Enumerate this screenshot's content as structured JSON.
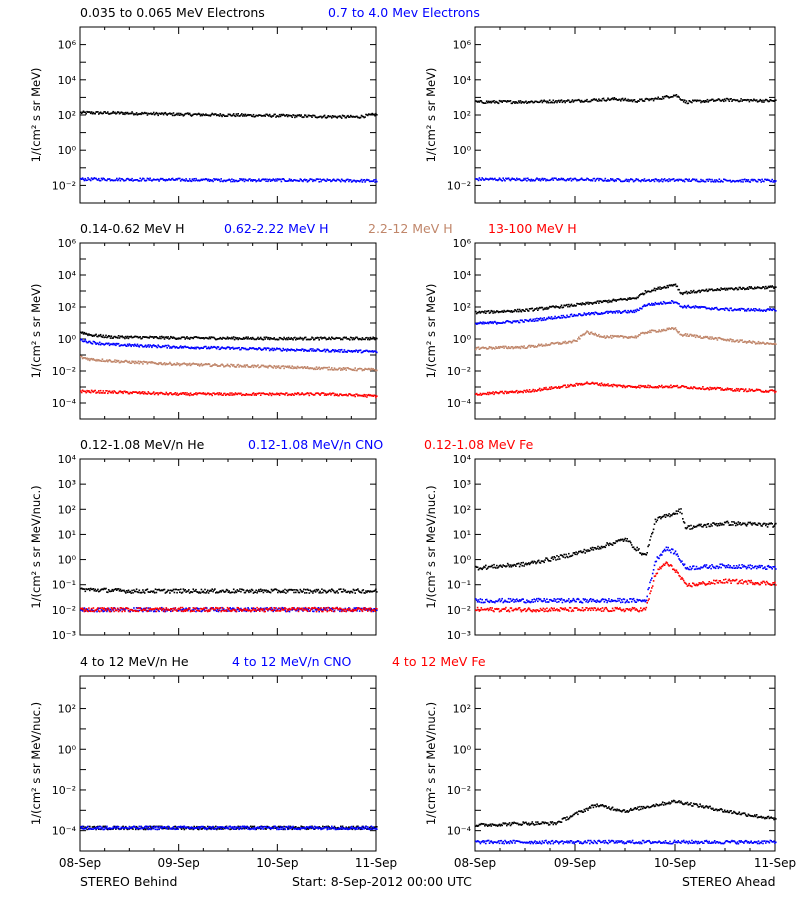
{
  "title_row": {
    "1": [
      {
        "text": "0.035 to 0.065 MeV Electrons",
        "color": "#000000"
      },
      {
        "text": "0.7 to 4.0 Mev Electrons",
        "color": "#0000FF"
      }
    ],
    "2": [
      {
        "text": "0.14-0.62 MeV H",
        "color": "#000000"
      },
      {
        "text": "0.62-2.22 MeV H",
        "color": "#0000FF"
      },
      {
        "text": "2.2-12 MeV H",
        "color": "#C0866A"
      },
      {
        "text": "13-100 MeV H",
        "color": "#FF0000"
      }
    ],
    "3": [
      {
        "text": "0.12-1.08 MeV/n He",
        "color": "#000000"
      },
      {
        "text": "0.12-1.08 MeV/n CNO",
        "color": "#0000FF"
      },
      {
        "text": "0.12-1.08 MeV Fe",
        "color": "#FF0000"
      }
    ],
    "4": [
      {
        "text": "4 to 12 MeV/n He",
        "color": "#000000"
      },
      {
        "text": "4 to 12 MeV/n CNO",
        "color": "#0000FF"
      },
      {
        "text": "4 to 12 MeV Fe",
        "color": "#FF0000"
      }
    ]
  },
  "footer": {
    "left": "STEREO Behind",
    "center": "Start:  8-Sep-2012 00:00 UTC",
    "right": "STEREO Ahead"
  },
  "chart_data": [
    {
      "id": "behind-electrons",
      "type": "scatter",
      "log_y": true,
      "ylim_exp": [
        -3,
        7
      ],
      "ylabel": "1/(cm² s sr MeV)",
      "yticks_exp": [
        -2,
        0,
        2,
        4,
        6
      ],
      "x_ticks": [
        "08-Sep",
        "09-Sep",
        "10-Sep",
        "11-Sep"
      ],
      "xlim_days": [
        0,
        3
      ],
      "series": [
        {
          "color": "#000000",
          "x": [
            0,
            0.5,
            1,
            1.5,
            2,
            2.5,
            2.8,
            3
          ],
          "y": [
            150,
            140,
            120,
            110,
            100,
            90,
            85,
            120
          ]
        },
        {
          "color": "#0000FF",
          "x": [
            0,
            0.5,
            1,
            1.5,
            2,
            2.5,
            3
          ],
          "y": [
            0.025,
            0.024,
            0.023,
            0.022,
            0.022,
            0.021,
            0.02
          ]
        }
      ]
    },
    {
      "id": "ahead-electrons",
      "type": "scatter",
      "log_y": true,
      "ylim_exp": [
        -3,
        7
      ],
      "ylabel": "1/(cm² s sr MeV)",
      "yticks_exp": [
        -2,
        0,
        2,
        4,
        6
      ],
      "x_ticks": [
        "08-Sep",
        "09-Sep",
        "10-Sep",
        "11-Sep"
      ],
      "xlim_days": [
        0,
        3
      ],
      "series": [
        {
          "color": "#000000",
          "x": [
            0,
            0.5,
            1,
            1.4,
            1.6,
            1.8,
            2.0,
            2.1,
            2.5,
            3
          ],
          "y": [
            600,
            620,
            700,
            900,
            700,
            900,
            1500,
            600,
            800,
            700
          ]
        },
        {
          "color": "#0000FF",
          "x": [
            0,
            0.5,
            1,
            1.5,
            2,
            2.5,
            3
          ],
          "y": [
            0.025,
            0.024,
            0.024,
            0.022,
            0.022,
            0.021,
            0.02
          ]
        }
      ]
    },
    {
      "id": "behind-protons",
      "type": "scatter",
      "log_y": true,
      "ylim_exp": [
        -5,
        6
      ],
      "ylabel": "1/(cm² s sr MeV)",
      "yticks_exp": [
        -4,
        -2,
        0,
        2,
        4,
        6
      ],
      "x_ticks": [
        "08-Sep",
        "09-Sep",
        "10-Sep",
        "11-Sep"
      ],
      "xlim_days": [
        0,
        3
      ],
      "series": [
        {
          "color": "#000000",
          "x": [
            0,
            0.1,
            0.3,
            1,
            2,
            3
          ],
          "y": [
            3,
            2,
            1.5,
            1.3,
            1.2,
            1.2
          ]
        },
        {
          "color": "#0000FF",
          "x": [
            0,
            0.1,
            0.3,
            1,
            2,
            3
          ],
          "y": [
            1,
            0.7,
            0.5,
            0.35,
            0.25,
            0.18
          ]
        },
        {
          "color": "#C0866A",
          "x": [
            0,
            0.1,
            0.5,
            1,
            2,
            3
          ],
          "y": [
            0.08,
            0.06,
            0.04,
            0.03,
            0.02,
            0.013
          ]
        },
        {
          "color": "#FF0000",
          "x": [
            0,
            0.5,
            1,
            1.5,
            2,
            2.5,
            3
          ],
          "y": [
            0.0006,
            0.0005,
            0.0004,
            0.0004,
            0.0004,
            0.0004,
            0.0003
          ]
        }
      ]
    },
    {
      "id": "ahead-protons",
      "type": "scatter",
      "log_y": true,
      "ylim_exp": [
        -5,
        6
      ],
      "ylabel": "1/(cm² s sr MeV)",
      "yticks_exp": [
        -4,
        -2,
        0,
        2,
        4,
        6
      ],
      "x_ticks": [
        "08-Sep",
        "09-Sep",
        "10-Sep",
        "11-Sep"
      ],
      "xlim_days": [
        0,
        3
      ],
      "series": [
        {
          "color": "#000000",
          "x": [
            0,
            0.5,
            1.0,
            1.3,
            1.6,
            1.7,
            2.0,
            2.05,
            2.1,
            2.5,
            3
          ],
          "y": [
            50,
            70,
            150,
            250,
            400,
            1000,
            3000,
            800,
            900,
            1500,
            2000
          ]
        },
        {
          "color": "#0000FF",
          "x": [
            0,
            0.5,
            1.0,
            1.3,
            1.6,
            1.7,
            2.0,
            2.05,
            2.1,
            2.5,
            3
          ],
          "y": [
            10,
            15,
            35,
            50,
            60,
            150,
            250,
            120,
            120,
            80,
            70
          ]
        },
        {
          "color": "#C0866A",
          "x": [
            0,
            0.5,
            1.0,
            1.1,
            1.3,
            1.6,
            1.7,
            2.0,
            2.05,
            2.1,
            2.5,
            3
          ],
          "y": [
            0.3,
            0.35,
            0.8,
            3,
            1.5,
            1.5,
            3,
            5,
            2,
            2,
            1,
            0.5
          ]
        },
        {
          "color": "#FF0000",
          "x": [
            0,
            0.5,
            1.0,
            1.1,
            1.5,
            2.0,
            2.5,
            3
          ],
          "y": [
            0.0004,
            0.0006,
            0.0015,
            0.002,
            0.0012,
            0.0012,
            0.0008,
            0.0006
          ]
        }
      ]
    },
    {
      "id": "behind-heavy-low",
      "type": "scatter",
      "log_y": true,
      "ylim_exp": [
        -3,
        4
      ],
      "ylabel": "1/(cm² s sr MeV/nuc.)",
      "yticks_exp": [
        -3,
        -2,
        -1,
        0,
        1,
        2,
        3,
        4
      ],
      "x_ticks": [
        "08-Sep",
        "09-Sep",
        "10-Sep",
        "11-Sep"
      ],
      "xlim_days": [
        0,
        3
      ],
      "series": [
        {
          "color": "#000000",
          "x": [
            0,
            0.5,
            1,
            1.5,
            2,
            2.5,
            3
          ],
          "y": [
            0.07,
            0.06,
            0.06,
            0.06,
            0.06,
            0.06,
            0.06
          ]
        },
        {
          "color": "#0000FF",
          "x": [
            0,
            0.5,
            1,
            1.5,
            2,
            2.5,
            3
          ],
          "y": [
            0.011,
            0.011,
            0.011,
            0.011,
            0.011,
            0.011,
            0.011
          ]
        },
        {
          "color": "#FF0000",
          "x": [
            0,
            0.5,
            1,
            1.5,
            2,
            2.5,
            3
          ],
          "y": [
            0.011,
            0.011,
            0.011,
            0.011,
            0.011,
            0.011,
            0.011
          ]
        }
      ]
    },
    {
      "id": "ahead-heavy-low",
      "type": "scatter",
      "log_y": true,
      "ylim_exp": [
        -3,
        4
      ],
      "ylabel": "1/(cm² s sr MeV/nuc.)",
      "yticks_exp": [
        -3,
        -2,
        -1,
        0,
        1,
        2,
        3,
        4
      ],
      "x_ticks": [
        "08-Sep",
        "09-Sep",
        "10-Sep",
        "11-Sep"
      ],
      "xlim_days": [
        0,
        3
      ],
      "series": [
        {
          "color": "#000000",
          "x": [
            0,
            0.5,
            0.9,
            1.2,
            1.5,
            1.6,
            1.7,
            1.8,
            2.0,
            2.05,
            2.1,
            2.5,
            3
          ],
          "y": [
            0.5,
            0.7,
            1.5,
            3,
            7,
            3,
            1.5,
            40,
            80,
            100,
            20,
            30,
            25
          ]
        },
        {
          "color": "#0000FF",
          "x": [
            0,
            0.5,
            1,
            1.5,
            1.7,
            1.8,
            1.9,
            2.0,
            2.1,
            2.5,
            3
          ],
          "y": [
            0.025,
            0.025,
            0.025,
            0.025,
            0.025,
            1,
            3,
            2,
            0.5,
            0.6,
            0.5
          ]
        },
        {
          "color": "#FF0000",
          "x": [
            0,
            0.5,
            1,
            1.5,
            1.7,
            1.8,
            1.9,
            2.0,
            2.1,
            2.5,
            3
          ],
          "y": [
            0.011,
            0.011,
            0.011,
            0.011,
            0.011,
            0.3,
            0.8,
            0.4,
            0.1,
            0.15,
            0.12
          ]
        }
      ]
    },
    {
      "id": "behind-heavy-high",
      "type": "scatter",
      "log_y": true,
      "ylim_exp": [
        -5,
        3.6
      ],
      "ylabel": "1/(cm² s sr MeV/nuc.)",
      "yticks_exp": [
        -4,
        -2,
        0,
        2
      ],
      "x_ticks": [
        "08-Sep",
        "09-Sep",
        "10-Sep",
        "11-Sep"
      ],
      "xlim_days": [
        0,
        3
      ],
      "series": [
        {
          "color": "#000000",
          "x": [
            0,
            0.5,
            1,
            1.5,
            2,
            2.5,
            3
          ],
          "y": [
            0.00015,
            0.00015,
            0.00015,
            0.00015,
            0.00015,
            0.00015,
            0.00015
          ]
        },
        {
          "color": "#0000FF",
          "x": [
            0,
            1,
            2,
            3
          ],
          "y": [
            0.00015,
            0.00015,
            0.00015,
            0.00015
          ]
        },
        {
          "color": "#FF0000",
          "x": [],
          "y": []
        }
      ]
    },
    {
      "id": "ahead-heavy-high",
      "type": "scatter",
      "log_y": true,
      "ylim_exp": [
        -5,
        3.6
      ],
      "ylabel": "1/(cm² s sr MeV/nuc.)",
      "yticks_exp": [
        -4,
        -2,
        0,
        2
      ],
      "x_ticks": [
        "08-Sep",
        "09-Sep",
        "10-Sep",
        "11-Sep"
      ],
      "xlim_days": [
        0,
        3
      ],
      "series": [
        {
          "color": "#000000",
          "x": [
            0,
            0.5,
            0.8,
            1.2,
            1.5,
            1.8,
            2.0,
            2.2,
            2.5,
            3
          ],
          "y": [
            0.0002,
            0.00025,
            0.00025,
            0.002,
            0.001,
            0.002,
            0.003,
            0.002,
            0.001,
            0.0004
          ]
        },
        {
          "color": "#0000FF",
          "x": [
            0,
            0.5,
            1,
            1.5,
            2,
            2.5,
            3
          ],
          "y": [
            3e-05,
            3e-05,
            3e-05,
            3e-05,
            3e-05,
            3e-05,
            3e-05
          ]
        },
        {
          "color": "#FF0000",
          "x": [],
          "y": []
        }
      ]
    }
  ]
}
